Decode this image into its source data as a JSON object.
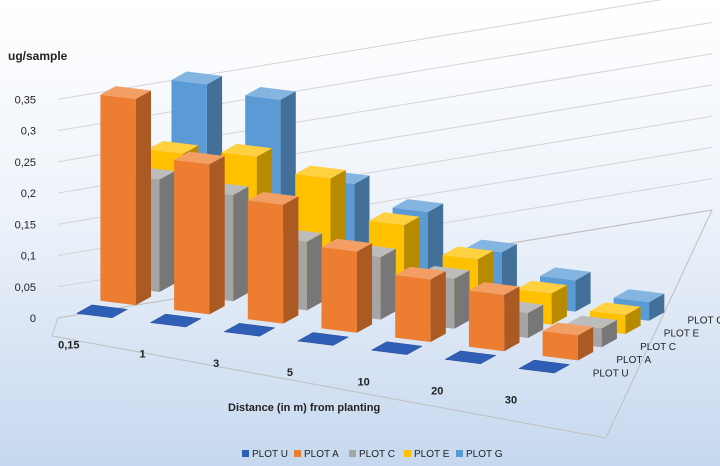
{
  "chart_data": {
    "type": "bar",
    "style": "3d-column",
    "ylabel": "ug/sample",
    "xlabel": "Distance (in m) from planting",
    "ylim": [
      0,
      0.35
    ],
    "y_ticks": [
      "0",
      "0,05",
      "0,1",
      "0,15",
      "0,2",
      "0,25",
      "0,3",
      "0,35"
    ],
    "categories": [
      "0,15",
      "1",
      "3",
      "5",
      "10",
      "20",
      "30"
    ],
    "series": [
      {
        "name": "PLOT U",
        "color": "#2E5EB5",
        "values": [
          0,
          0,
          0,
          0,
          0,
          0,
          0
        ]
      },
      {
        "name": "PLOT A",
        "color": "#ED7D31",
        "values": [
          0.33,
          0.24,
          0.19,
          0.13,
          0.1,
          0.09,
          0.04
        ]
      },
      {
        "name": "PLOT C",
        "color": "#A5A5A5",
        "values": [
          0.18,
          0.17,
          0.11,
          0.1,
          0.08,
          0.04,
          0.03
        ]
      },
      {
        "name": "PLOT E",
        "color": "#FFC000",
        "values": [
          0.2,
          0.21,
          0.19,
          0.13,
          0.09,
          0.05,
          0.03
        ]
      },
      {
        "name": "PLOT G",
        "color": "#5B9BD5",
        "values": [
          0.29,
          0.28,
          0.16,
          0.13,
          0.08,
          0.05,
          0.03
        ]
      }
    ],
    "grid": true,
    "legend": "bottom"
  }
}
